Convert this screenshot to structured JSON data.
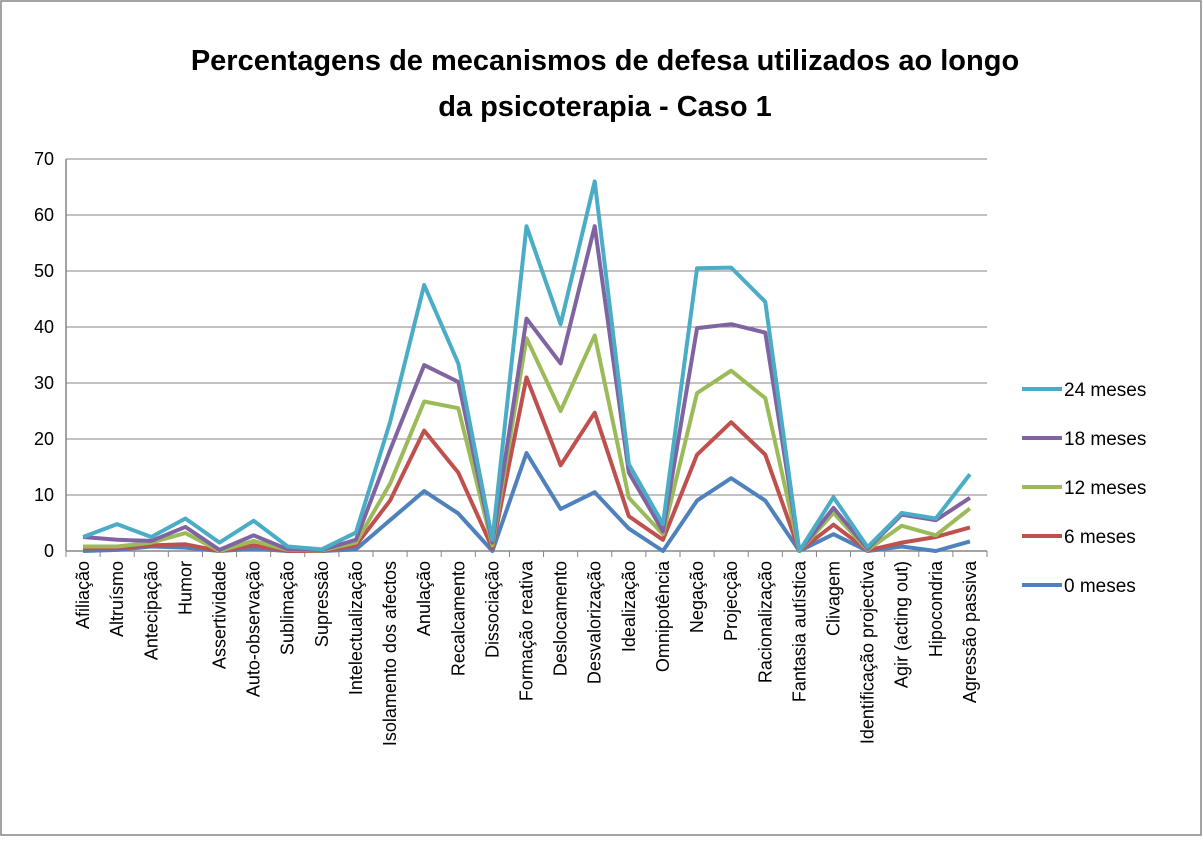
{
  "chart_data": {
    "type": "line",
    "title": [
      "Percentagens de mecanismos de defesa utilizados ao longo",
      "da psicoterapia - Caso 1"
    ],
    "categories": [
      "Afiliação",
      "Altruísmo",
      "Antecipação",
      "Humor",
      "Assertividade",
      "Auto-observação",
      "Sublimação",
      "Supressão",
      "Intelectualização",
      "Isolamento dos afectos",
      "Anulação",
      "Recalcamento",
      "Dissociação",
      "Formação reativa",
      "Deslocamento",
      "Desvalorização",
      "Idealização",
      "Omnipotência",
      "Negação",
      "Projecção",
      "Racionalização",
      "Fantasia autística",
      "Clivagem",
      "Identificação projectiva",
      "Agir (acting out)",
      "Hipocondria",
      "Agressão passiva"
    ],
    "series": [
      {
        "name": "24 meses",
        "color": "#4bacc6",
        "values": [
          2.5,
          4.8,
          2.5,
          5.8,
          1.5,
          5.4,
          0.8,
          0.3,
          3.3,
          23,
          47.5,
          33.5,
          2,
          58,
          40.5,
          66,
          15.5,
          4.8,
          50.5,
          50.6,
          44.5,
          0,
          9.6,
          0.7,
          6.8,
          5.8,
          13.7
        ]
      },
      {
        "name": "18 meses",
        "color": "#8064a2",
        "values": [
          2.5,
          2,
          1.8,
          4.3,
          0.2,
          2.8,
          0.3,
          0.2,
          2,
          18,
          33.2,
          30.2,
          1.5,
          41.5,
          33.5,
          58,
          14,
          3.5,
          39.8,
          40.5,
          39,
          0,
          7.7,
          0.4,
          6.5,
          5.5,
          9.5
        ]
      },
      {
        "name": "12 meses",
        "color": "#9bbb59",
        "values": [
          0.8,
          0.8,
          1.5,
          3.2,
          0,
          1.8,
          0.2,
          0.1,
          1.5,
          12,
          26.7,
          25.5,
          1,
          38,
          25,
          38.5,
          9.5,
          3,
          28.2,
          32.2,
          27.3,
          0,
          6.8,
          0.2,
          4.5,
          2.8,
          7.6
        ]
      },
      {
        "name": "6 meses",
        "color": "#c0504d",
        "values": [
          0.5,
          0.5,
          1,
          1.2,
          0,
          1,
          0,
          0,
          1,
          9,
          21.5,
          14,
          0.5,
          31,
          15.3,
          24.7,
          6.2,
          2,
          17.2,
          23,
          17.2,
          0,
          4.7,
          0.1,
          1.5,
          2.5,
          4.2
        ]
      },
      {
        "name": "0 meses",
        "color": "#4f81bd",
        "values": [
          0,
          0.2,
          0.8,
          0.6,
          0,
          0.4,
          0,
          0,
          0.3,
          5.5,
          10.7,
          6.7,
          0,
          17.5,
          7.5,
          10.5,
          4,
          0,
          9,
          13,
          9,
          0,
          3,
          0,
          0.8,
          0,
          1.7
        ]
      }
    ],
    "ylim": [
      0,
      70
    ],
    "yticks": [
      0,
      10,
      20,
      30,
      40,
      50,
      60,
      70
    ],
    "grid": true,
    "legend": "right"
  }
}
